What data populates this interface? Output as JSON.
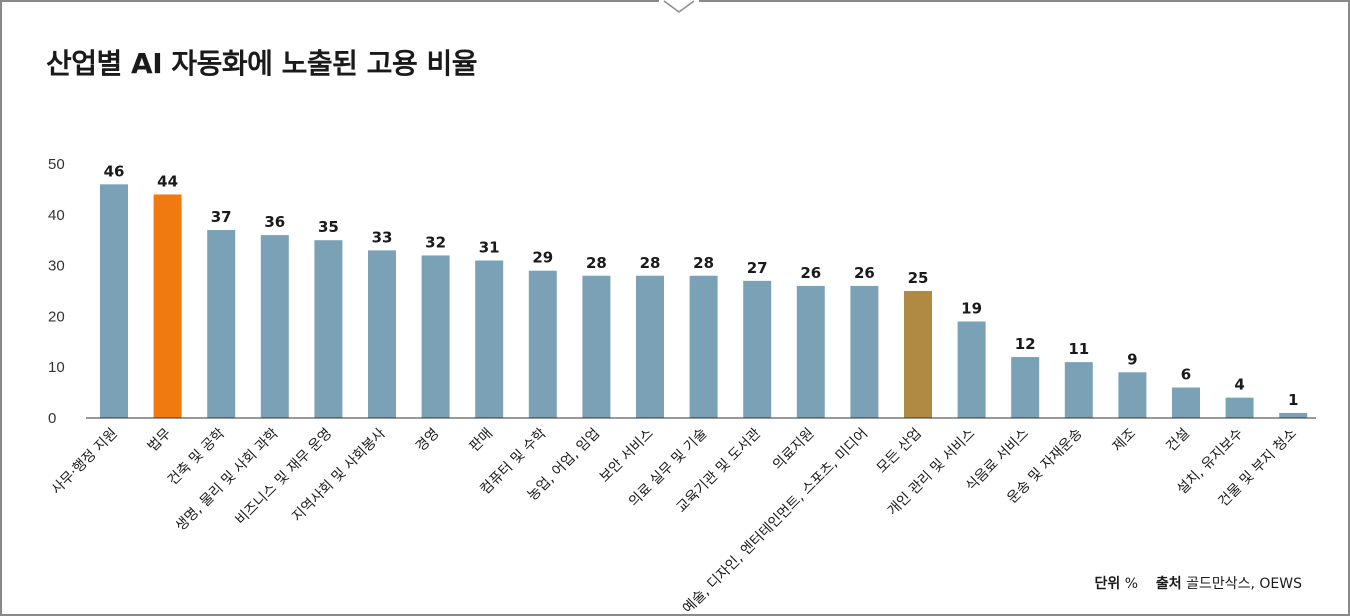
{
  "title": "산업별 AI 자동화에 노출된 고용 비율",
  "footer": {
    "unit_label": "단위",
    "unit_value": "%",
    "source_label": "출처",
    "source_value": "골드만삭스, OEWS"
  },
  "colors": {
    "default_bar": "#7aa1b6",
    "highlight_law": "#f07a0f",
    "highlight_all": "#b08a42"
  },
  "chart_data": {
    "type": "bar",
    "categories": [
      "사무·행정 지원",
      "법무",
      "건축 및 공학",
      "생명, 물리 및 사회 과학",
      "비즈니스 및 재무 운영",
      "지역사회 및 사회봉사",
      "경영",
      "판매",
      "컴퓨터 및 수학",
      "농업, 어업, 임업",
      "보안 서비스",
      "의료 실무 및 기술",
      "교육기관 및 도서관",
      "의료지원",
      "예술, 디자인, 엔터테인먼트, 스포츠, 미디어",
      "모든 산업",
      "개인 관리 및 서비스",
      "식음료 서비스",
      "운송 및 자재운송",
      "제조",
      "건설",
      "설치, 유지보수",
      "건물 및 부지 청소"
    ],
    "values": [
      46,
      44,
      37,
      36,
      35,
      33,
      32,
      31,
      29,
      28,
      28,
      28,
      27,
      26,
      26,
      25,
      19,
      12,
      11,
      9,
      6,
      4,
      1
    ],
    "ylim": [
      0,
      50
    ],
    "yticks": [
      "0",
      "10",
      "20",
      "30",
      "40",
      "50"
    ],
    "highlights": {
      "법무": "law",
      "모든 산업": "all"
    },
    "grid": false
  }
}
